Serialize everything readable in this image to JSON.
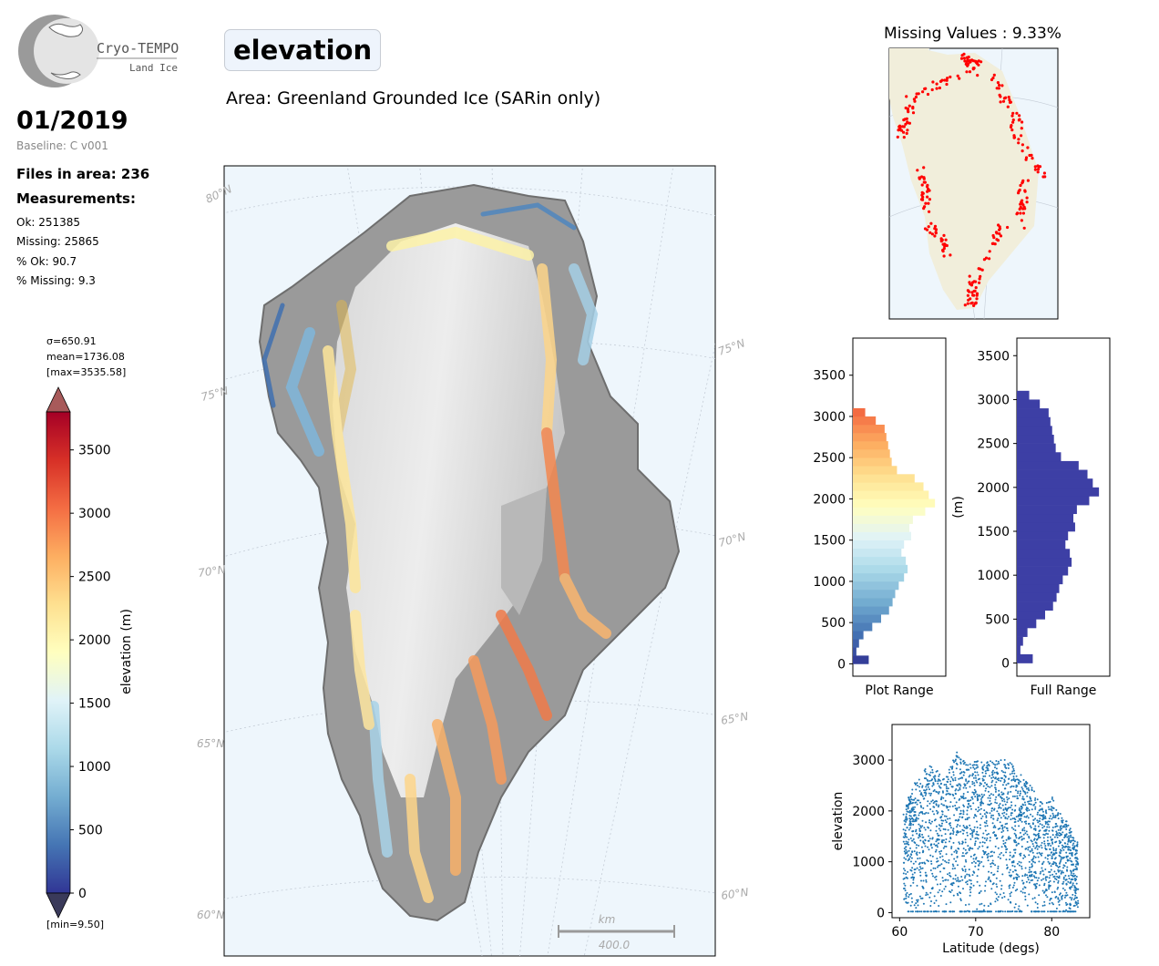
{
  "logo": {
    "name": "Cryo-TEMPO",
    "sub": "Land Ice"
  },
  "header": {
    "period": "01/2019",
    "baseline": "Baseline: C v001",
    "files": "Files in area: 236",
    "measurements_label": "Measurements:",
    "ok": "Ok: 251385",
    "missing": "Missing: 25865",
    "pct_ok": "% Ok: 90.7",
    "pct_missing": "% Missing: 9.3"
  },
  "title": "elevation",
  "area": "Area: Greenland Grounded Ice (SARin only)",
  "colorbar": {
    "sigma": "σ=650.91",
    "mean": "mean=1736.08",
    "max": "[max=3535.58]",
    "min": "[min=9.50]",
    "label": "elevation (m)",
    "ticks": [
      "0",
      "500",
      "1000",
      "1500",
      "2000",
      "2500",
      "3000",
      "3500"
    ],
    "range": [
      0,
      3800
    ],
    "colormap": "RdYlBu_r"
  },
  "map": {
    "lat_labels_left": [
      "80°N",
      "75°N",
      "70°N",
      "65°N",
      "60°N"
    ],
    "lat_labels_right": [
      "75°N",
      "70°N",
      "65°N",
      "60°N"
    ],
    "scalebar_unit": "km",
    "scalebar_value": "400.0",
    "colors": {
      "ocean": "#eef6fc",
      "track_high": "#e8673d",
      "track_low": "#4a78b8"
    }
  },
  "missing_map": {
    "title": "Missing Values : 9.33%",
    "point_color": "#ff0000",
    "land_color": "#f1eedb"
  },
  "chart_data": [
    {
      "type": "bar",
      "orientation": "horizontal",
      "title": "",
      "xlabel": "Plot Range",
      "ylabel": "",
      "ylim": [
        -150,
        3950
      ],
      "yticks": [
        "0",
        "500",
        "1000",
        "1500",
        "2000",
        "2500",
        "3000",
        "3500"
      ],
      "bin_edges_m": [
        0,
        100,
        200,
        300,
        400,
        500,
        600,
        700,
        800,
        900,
        1000,
        1100,
        1200,
        1300,
        1400,
        1500,
        1600,
        1700,
        1800,
        1900,
        2000,
        2100,
        2200,
        2300,
        2400,
        2500,
        2600,
        2700,
        2800,
        2900,
        3000,
        3100
      ],
      "values": [
        0.18,
        0.04,
        0.07,
        0.12,
        0.22,
        0.32,
        0.41,
        0.45,
        0.48,
        0.52,
        0.58,
        0.62,
        0.6,
        0.55,
        0.58,
        0.66,
        0.64,
        0.68,
        0.82,
        0.93,
        0.86,
        0.8,
        0.7,
        0.5,
        0.44,
        0.42,
        0.4,
        0.38,
        0.36,
        0.26,
        0.14
      ],
      "colormap": "RdYlBu_r"
    },
    {
      "type": "bar",
      "orientation": "horizontal",
      "title": "",
      "xlabel": "Full Range",
      "ylabel": "(m)",
      "ylim": [
        -150,
        3700
      ],
      "yticks": [
        "0",
        "500",
        "1000",
        "1500",
        "2000",
        "2500",
        "3000",
        "3500"
      ],
      "bin_edges_m": [
        0,
        100,
        200,
        300,
        400,
        500,
        600,
        700,
        800,
        900,
        1000,
        1100,
        1200,
        1300,
        1400,
        1500,
        1600,
        1700,
        1800,
        1900,
        2000,
        2100,
        2200,
        2300,
        2400,
        2500,
        2600,
        2700,
        2800,
        2900,
        3000,
        3100
      ],
      "values": [
        0.18,
        0.04,
        0.07,
        0.12,
        0.22,
        0.32,
        0.41,
        0.45,
        0.48,
        0.52,
        0.58,
        0.62,
        0.6,
        0.55,
        0.58,
        0.66,
        0.64,
        0.68,
        0.82,
        0.93,
        0.86,
        0.8,
        0.7,
        0.5,
        0.44,
        0.42,
        0.4,
        0.38,
        0.36,
        0.26,
        0.14
      ],
      "color": "#3d3fa5"
    },
    {
      "type": "scatter",
      "title": "",
      "xlabel": "Latitude (degs)",
      "ylabel": "elevation",
      "xlim": [
        59,
        85
      ],
      "ylim": [
        -100,
        3700
      ],
      "xticks": [
        "60",
        "70",
        "80"
      ],
      "yticks": [
        "0",
        "1000",
        "2000",
        "3000"
      ],
      "color": "#1f77b4",
      "upper_envelope": {
        "x": [
          60.5,
          62,
          63,
          64,
          65,
          66,
          67,
          67.5,
          68,
          69,
          70,
          71,
          72,
          73,
          74,
          75,
          76,
          77,
          78,
          79,
          80,
          81,
          82,
          83,
          83.5
        ],
        "y": [
          2100,
          2600,
          2850,
          2900,
          2800,
          2700,
          3000,
          3200,
          3100,
          2950,
          3000,
          2950,
          3000,
          3050,
          3000,
          2900,
          2700,
          2600,
          2300,
          2100,
          2300,
          2000,
          1800,
          1500,
          1400
        ]
      },
      "lower_envelope": {
        "x": [
          60.5,
          62,
          64,
          66,
          68,
          70,
          72,
          74,
          76,
          78,
          80,
          82,
          83.5
        ],
        "y": [
          100,
          20,
          20,
          20,
          20,
          20,
          20,
          20,
          20,
          20,
          20,
          20,
          20
        ]
      }
    }
  ]
}
